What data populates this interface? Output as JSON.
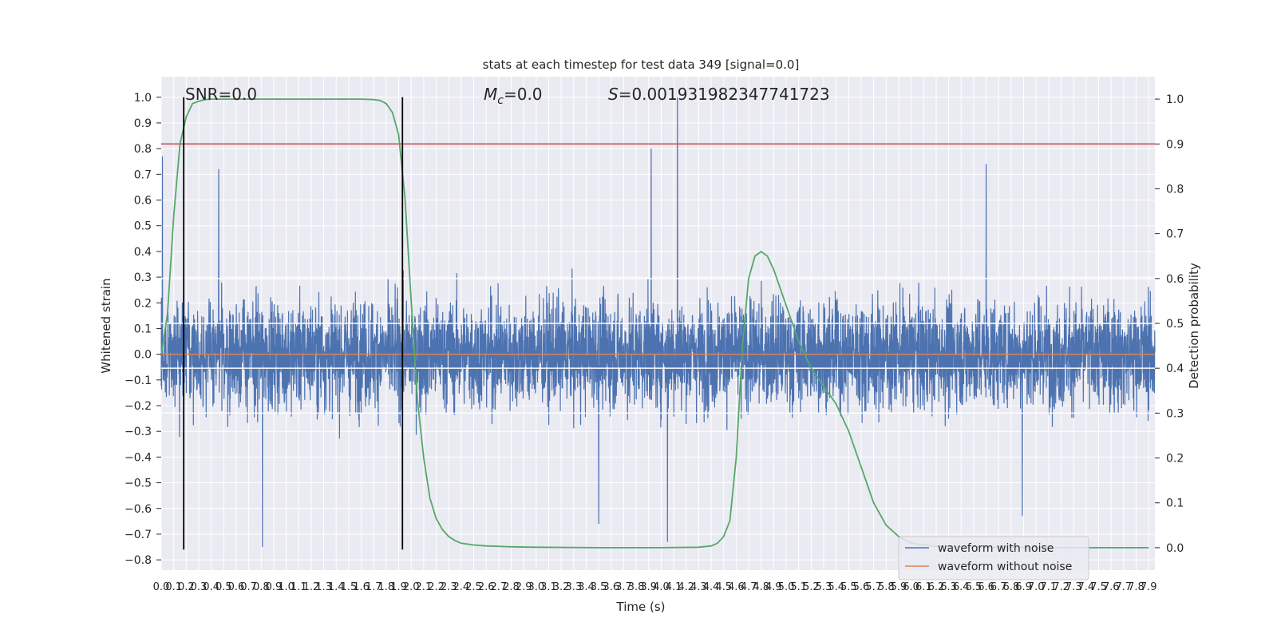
{
  "chart_data": {
    "type": "line",
    "title": "stats at each timestep for test data 349 [signal=0.0]",
    "xlabel": "Time (s)",
    "ylabel": "Whitened strain",
    "y2label": "Detection probability",
    "annotations": {
      "snr": "SNR=0.0",
      "mc_symbol": "M",
      "mc_sub": "c",
      "mc_value": "=0.0",
      "s_symbol": "S",
      "s_value": "=0.001931982347741723"
    },
    "xlim": [
      0.0,
      7.95
    ],
    "ylim": [
      -0.84,
      1.08
    ],
    "y2lim": [
      -0.05,
      1.05
    ],
    "x_ticks": [
      0.0,
      0.1,
      0.2,
      0.3,
      0.4,
      0.5,
      0.6,
      0.7,
      0.8,
      0.9,
      1.0,
      1.1,
      1.2,
      1.3,
      1.4,
      1.5,
      1.6,
      1.7,
      1.8,
      1.9,
      2.0,
      2.1,
      2.2,
      2.3,
      2.4,
      2.5,
      2.6,
      2.7,
      2.8,
      2.9,
      3.0,
      3.1,
      3.2,
      3.3,
      3.4,
      3.5,
      3.6,
      3.7,
      3.8,
      3.9,
      4.0,
      4.1,
      4.2,
      4.3,
      4.4,
      4.5,
      4.6,
      4.7,
      4.8,
      4.9,
      5.0,
      5.1,
      5.2,
      5.3,
      5.4,
      5.5,
      5.6,
      5.7,
      5.8,
      5.9,
      6.0,
      6.1,
      6.2,
      6.3,
      6.4,
      6.5,
      6.6,
      6.7,
      6.8,
      6.9,
      7.0,
      7.1,
      7.2,
      7.3,
      7.4,
      7.5,
      7.6,
      7.7,
      7.8,
      7.9
    ],
    "x_tick_labels": [
      "0.0",
      "0.1",
      "0.2",
      "0.3",
      "0.4",
      "0.5",
      "0.6",
      "0.7",
      "0.8",
      "0.9",
      "1.0",
      "1.1",
      "1.2",
      "1.3",
      "1.4",
      "1.5",
      "1.6",
      "1.7",
      "1.8",
      "1.9",
      "2.0",
      "2.1",
      "2.2",
      "2.3",
      "2.4",
      "2.5",
      "2.6",
      "2.7",
      "2.8",
      "2.9",
      "3.0",
      "3.1",
      "3.2",
      "3.3",
      "3.4",
      "3.5",
      "3.6",
      "3.7",
      "3.8",
      "3.9",
      "4.0",
      "4.1",
      "4.2",
      "4.3",
      "4.4",
      "4.5",
      "4.6",
      "4.7",
      "4.8",
      "4.9",
      "5.0",
      "5.1",
      "5.2",
      "5.3",
      "5.4",
      "5.5",
      "5.6",
      "5.7",
      "5.8",
      "5.9",
      "6.0",
      "6.1",
      "6.2",
      "6.3",
      "6.4",
      "6.5",
      "6.6",
      "6.7",
      "6.8",
      "6.9",
      "7.0",
      "7.1",
      "7.2",
      "7.3",
      "7.4",
      "7.5",
      "7.6",
      "7.7",
      "7.8",
      "7.9"
    ],
    "y_ticks": [
      -0.8,
      -0.7,
      -0.6,
      -0.5,
      -0.4,
      -0.3,
      -0.2,
      -0.1,
      0.0,
      0.1,
      0.2,
      0.3,
      0.4,
      0.5,
      0.6,
      0.7,
      0.8,
      0.9,
      1.0
    ],
    "y_tick_labels": [
      "−0.8",
      "−0.7",
      "−0.6",
      "−0.5",
      "−0.4",
      "−0.3",
      "−0.2",
      "−0.1",
      "0.0",
      "0.1",
      "0.2",
      "0.3",
      "0.4",
      "0.5",
      "0.6",
      "0.7",
      "0.8",
      "0.9",
      "1.0"
    ],
    "y2_ticks": [
      0.0,
      0.1,
      0.2,
      0.3,
      0.4,
      0.5,
      0.6,
      0.7,
      0.8,
      0.9,
      1.0
    ],
    "y2_tick_labels": [
      "0.0",
      "0.1",
      "0.2",
      "0.3",
      "0.4",
      "0.5",
      "0.6",
      "0.7",
      "0.8",
      "0.9",
      "1.0"
    ],
    "grid": true,
    "legend_position": "lower-right",
    "series": [
      {
        "name": "waveform with noise",
        "color": "#4c72b0",
        "axis": "left",
        "sample_x_range": [
          0.0,
          7.95
        ],
        "envelope_typical": [
          -0.4,
          0.4
        ],
        "spikes": [
          [
            0.01,
            0.77
          ],
          [
            0.46,
            0.72
          ],
          [
            3.92,
            0.8
          ],
          [
            4.13,
            1.0
          ],
          [
            6.6,
            0.74
          ],
          [
            0.81,
            -0.75
          ],
          [
            4.05,
            -0.73
          ],
          [
            3.5,
            -0.66
          ],
          [
            6.89,
            -0.63
          ]
        ]
      },
      {
        "name": "waveform without noise",
        "color": "#dd8452",
        "axis": "left",
        "x": [
          0.0,
          7.95
        ],
        "y": [
          0.0,
          0.0
        ]
      },
      {
        "name": "",
        "color": "#55a868",
        "axis": "right",
        "x": [
          0.0,
          0.05,
          0.1,
          0.15,
          0.2,
          0.25,
          0.3,
          0.35,
          0.4,
          0.45,
          0.5,
          0.6,
          0.8,
          1.0,
          1.2,
          1.4,
          1.6,
          1.7,
          1.75,
          1.8,
          1.85,
          1.9,
          1.95,
          2.0,
          2.05,
          2.1,
          2.15,
          2.2,
          2.25,
          2.3,
          2.35,
          2.4,
          2.5,
          2.6,
          2.8,
          3.0,
          3.5,
          4.0,
          4.3,
          4.4,
          4.45,
          4.5,
          4.55,
          4.6,
          4.65,
          4.7,
          4.75,
          4.8,
          4.85,
          4.9,
          4.95,
          5.0,
          5.1,
          5.2,
          5.3,
          5.4,
          5.5,
          5.6,
          5.7,
          5.8,
          5.9,
          6.0,
          6.2,
          6.5,
          7.0,
          7.5,
          7.9
        ],
        "y": [
          0.43,
          0.52,
          0.74,
          0.9,
          0.96,
          0.99,
          0.995,
          0.999,
          1.0,
          1.0,
          1.0,
          1.0,
          1.0,
          1.0,
          1.0,
          1.0,
          1.0,
          0.999,
          0.997,
          0.99,
          0.97,
          0.92,
          0.78,
          0.55,
          0.33,
          0.2,
          0.11,
          0.065,
          0.04,
          0.025,
          0.016,
          0.01,
          0.006,
          0.004,
          0.002,
          0.001,
          0.0,
          0.0,
          0.001,
          0.004,
          0.01,
          0.025,
          0.06,
          0.2,
          0.45,
          0.6,
          0.65,
          0.66,
          0.65,
          0.62,
          0.58,
          0.54,
          0.46,
          0.4,
          0.36,
          0.32,
          0.26,
          0.18,
          0.1,
          0.05,
          0.025,
          0.01,
          0.003,
          0.001,
          0.0,
          0.0,
          0.0
        ]
      },
      {
        "name": "",
        "color": "#c44e52",
        "axis": "right",
        "x": [
          0.0,
          7.95
        ],
        "y": [
          0.9,
          0.9
        ]
      }
    ],
    "vertical_lines": [
      {
        "x": 0.18,
        "y_from": -0.76,
        "y_to": 1.0,
        "color": "#000000"
      },
      {
        "x": 1.93,
        "y_from": -0.76,
        "y_to": 1.0,
        "color": "#000000"
      }
    ],
    "horizontal_lines": [
      {
        "y": 0.3,
        "axis": "right",
        "color": "#ffffff"
      },
      {
        "y": 0.5,
        "axis": "right",
        "color": "#ffffff"
      },
      {
        "y": 0.6,
        "axis": "right",
        "color": "#ffffff"
      },
      {
        "y": 0.4,
        "axis": "right",
        "color": "#ffffff"
      }
    ]
  }
}
